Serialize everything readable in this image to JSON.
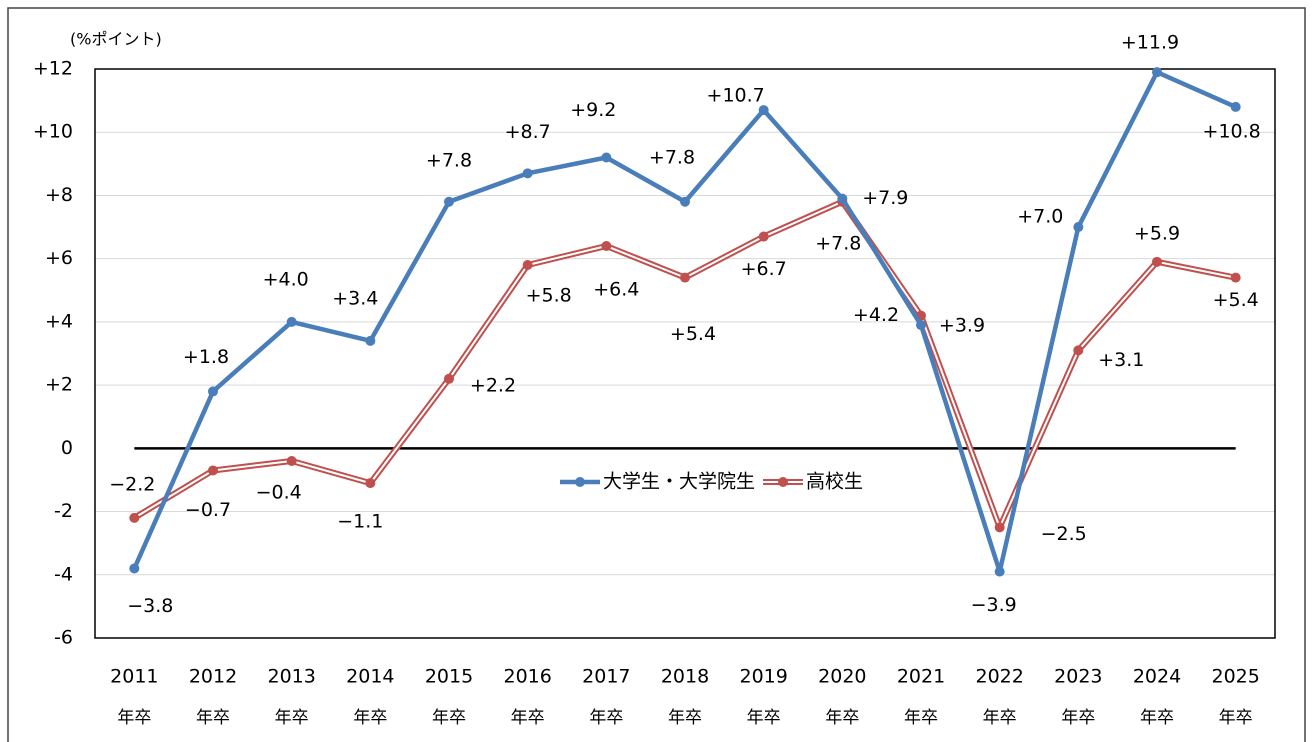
{
  "chart_data": {
    "type": "line",
    "annotation": "(%ポイント)",
    "categories": [
      [
        "2011",
        "年卒"
      ],
      [
        "2012",
        "年卒"
      ],
      [
        "2013",
        "年卒"
      ],
      [
        "2014",
        "年卒"
      ],
      [
        "2015",
        "年卒"
      ],
      [
        "2016",
        "年卒"
      ],
      [
        "2017",
        "年卒"
      ],
      [
        "2018",
        "年卒"
      ],
      [
        "2019",
        "年卒"
      ],
      [
        "2020",
        "年卒"
      ],
      [
        "2021",
        "年卒"
      ],
      [
        "2022",
        "年卒"
      ],
      [
        "2023",
        "年卒"
      ],
      [
        "2024",
        "年卒"
      ],
      [
        "2025",
        "年卒"
      ]
    ],
    "series": [
      {
        "name": "大学生・大学院生",
        "color": "#4a7ebb",
        "label_color": "#2e75b6",
        "values": [
          -3.8,
          1.8,
          4.0,
          3.4,
          7.8,
          8.7,
          9.2,
          7.8,
          10.7,
          7.9,
          3.9,
          -3.9,
          7.0,
          11.9,
          10.8
        ],
        "value_labels": [
          "−3.8",
          "+1.8",
          "+4.0",
          "+3.4",
          "+7.8",
          "+8.7",
          "+9.2",
          "+7.8",
          "+10.7",
          "+7.9",
          "+3.9",
          "−3.9",
          "+7.0",
          "+11.9",
          "+10.8"
        ]
      },
      {
        "name": "高校生",
        "color": "#c0504d",
        "label_color": "#c00000",
        "values": [
          -2.2,
          -0.7,
          -0.4,
          -1.1,
          2.2,
          5.8,
          6.4,
          5.4,
          6.7,
          7.8,
          4.2,
          -2.5,
          3.1,
          5.9,
          5.4
        ],
        "value_labels": [
          "−2.2",
          "−0.7",
          "−0.4",
          "−1.1",
          "+2.2",
          "+5.8",
          "+6.4",
          "+5.4",
          "+6.7",
          "+7.8",
          "+4.2",
          "−2.5",
          "+3.1",
          "+5.9",
          "+5.4"
        ]
      }
    ],
    "ylim": [
      -6,
      12
    ],
    "yticks": [
      -6,
      -4,
      -2,
      0,
      {
        "value": 2,
        "label": "+2"
      },
      {
        "value": 4,
        "label": "+4"
      },
      {
        "value": 6,
        "label": "+6"
      },
      {
        "value": 8,
        "label": "+8"
      },
      {
        "value": 10,
        "label": "+10"
      },
      {
        "value": 12,
        "label": "+12"
      }
    ],
    "grid": true,
    "legend": "center"
  }
}
